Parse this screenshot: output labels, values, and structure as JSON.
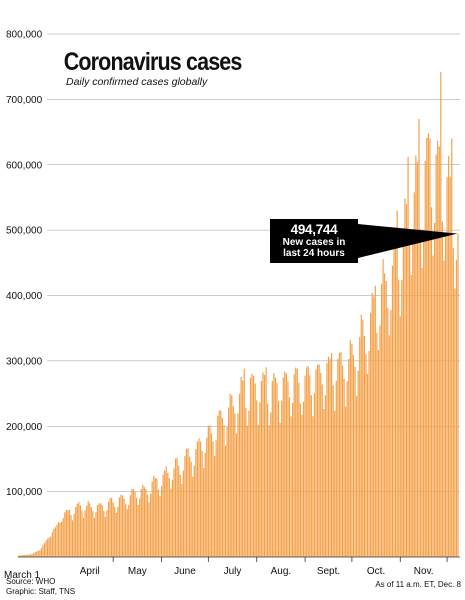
{
  "chart_data": {
    "type": "bar",
    "title": "Coronavirus cases",
    "subtitle": "Daily confirmed cases globally",
    "xlabel": "",
    "ylabel": "",
    "ylim": [
      0,
      800000
    ],
    "y_ticks": [
      100000,
      200000,
      300000,
      400000,
      500000,
      600000,
      700000,
      800000
    ],
    "y_tick_labels": [
      "100,000",
      "200,000",
      "300,000",
      "400,000",
      "500,000",
      "600,000",
      "700,000",
      "800,000"
    ],
    "x_start": "March 1",
    "x_end": "Dec. 8",
    "months": [
      "April",
      "May",
      "June",
      "July",
      "Aug.",
      "Sept.",
      "Oct.",
      "Nov."
    ],
    "grid": true,
    "bar_color": "#f4a14a",
    "grid_color": "#9a9a9a",
    "anchors": [
      [
        "2020-03-01",
        2000
      ],
      [
        "2020-03-10",
        4500
      ],
      [
        "2020-03-15",
        11000
      ],
      [
        "2020-03-20",
        28000
      ],
      [
        "2020-03-25",
        45000
      ],
      [
        "2020-03-31",
        65000
      ],
      [
        "2020-04-10",
        78000
      ],
      [
        "2020-04-20",
        75000
      ],
      [
        "2020-04-30",
        82000
      ],
      [
        "2020-05-10",
        90000
      ],
      [
        "2020-05-20",
        100000
      ],
      [
        "2020-05-31",
        118000
      ],
      [
        "2020-06-10",
        135000
      ],
      [
        "2020-06-20",
        155000
      ],
      [
        "2020-06-30",
        180000
      ],
      [
        "2020-07-10",
        215000
      ],
      [
        "2020-07-20",
        240000
      ],
      [
        "2020-07-31",
        265000
      ],
      [
        "2020-08-10",
        252000
      ],
      [
        "2020-08-20",
        260000
      ],
      [
        "2020-08-31",
        263000
      ],
      [
        "2020-09-10",
        275000
      ],
      [
        "2020-09-20",
        290000
      ],
      [
        "2020-09-30",
        295000
      ],
      [
        "2020-10-10",
        345000
      ],
      [
        "2020-10-20",
        400000
      ],
      [
        "2020-10-31",
        460000
      ],
      [
        "2020-11-10",
        540000
      ],
      [
        "2020-11-20",
        590000
      ],
      [
        "2020-11-30",
        560000
      ],
      [
        "2020-12-08",
        494744
      ]
    ],
    "peaks": [
      [
        "2020-07-24",
        288000
      ],
      [
        "2020-08-07",
        290000
      ],
      [
        "2020-09-18",
        312000
      ],
      [
        "2020-10-16",
        415000
      ],
      [
        "2020-10-30",
        530000
      ],
      [
        "2020-11-06",
        612000
      ],
      [
        "2020-11-13",
        670000
      ],
      [
        "2020-11-20",
        640000
      ],
      [
        "2020-11-27",
        742000
      ],
      [
        "2020-12-04",
        640000
      ]
    ],
    "annotation": {
      "date": "2020-12-08",
      "value": "494,744",
      "label": "New cases in last 24 hours"
    }
  },
  "footer": {
    "source": "Source: WHO",
    "graphic": "Graphic: Staff, TNS",
    "as_of": "As of 11 a.m. ET, Dec. 8"
  }
}
